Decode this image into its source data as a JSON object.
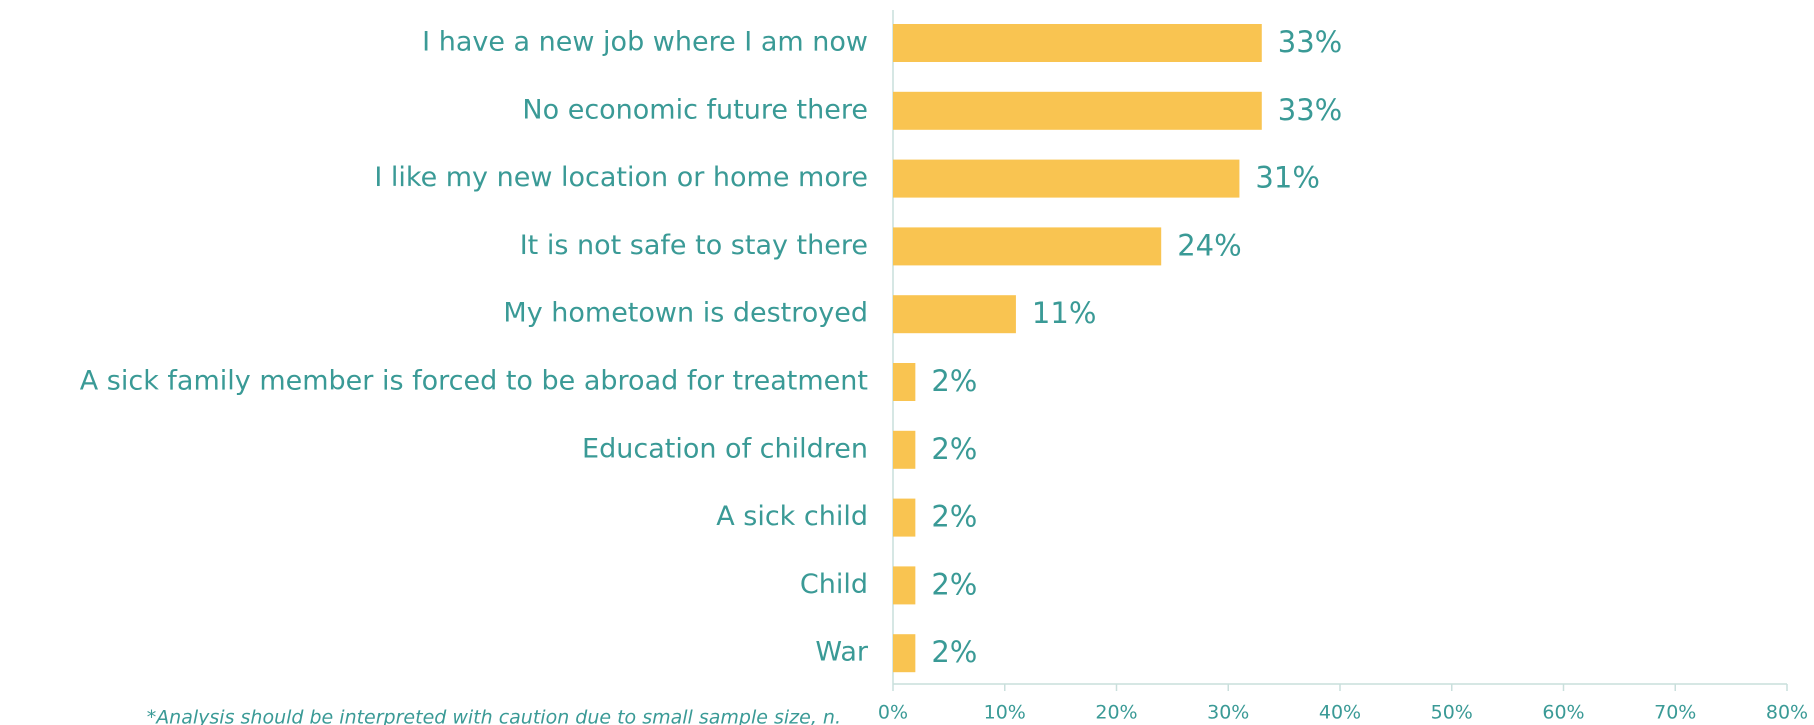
{
  "chart_data": {
    "type": "bar",
    "orientation": "horizontal",
    "categories": [
      "I have a new job where I am now",
      "No economic future there",
      "I like my new location or home more",
      "It is not safe to stay there",
      "My hometown is destroyed",
      "A sick family member is forced to be abroad for treatment",
      "Education of children",
      "A sick child",
      "Child",
      "War"
    ],
    "values": [
      33,
      33,
      31,
      24,
      11,
      2,
      2,
      2,
      2,
      2
    ],
    "value_labels": [
      "33%",
      "33%",
      "31%",
      "24%",
      "11%",
      "2%",
      "2%",
      "2%",
      "2%",
      "2%"
    ],
    "color": "#f9c451",
    "xlim": [
      0,
      80
    ],
    "xticks": [
      {
        "value": 0,
        "label": "0%"
      },
      {
        "value": 10,
        "label": "10%"
      },
      {
        "value": 20,
        "label": "20%"
      },
      {
        "value": 30,
        "label": "30%"
      },
      {
        "value": 40,
        "label": "40%"
      },
      {
        "value": 50,
        "label": "50%"
      },
      {
        "value": 60,
        "label": "60%"
      },
      {
        "value": 70,
        "label": "70%"
      },
      {
        "value": 80,
        "label": "80%"
      }
    ],
    "annotation": "*Analysis should be interpreted with caution due to small sample size, n."
  }
}
